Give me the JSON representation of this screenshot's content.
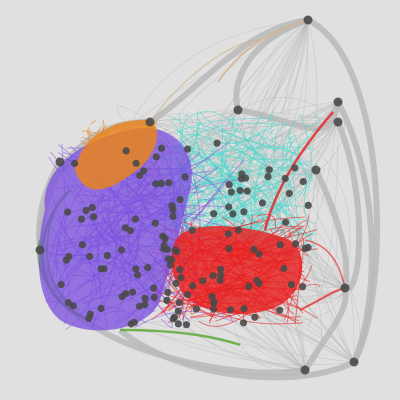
{
  "background_color": "#e0e0e0",
  "node_color": "#4a4a4a",
  "edge_colors": {
    "default": "#b8b8b8",
    "orange_cluster": "#e8841f",
    "purple_cluster": "#7b4fe0",
    "green_cluster": "#55a82a",
    "cyan_cluster": "#3fd9cc",
    "red_cluster": "#e81e1e",
    "tan_accent": "#d2b48c"
  },
  "communities": [
    {
      "name": "orange",
      "color": "#e8841f"
    },
    {
      "name": "purple",
      "color": "#7b4fe0"
    },
    {
      "name": "green",
      "color": "#55a82a"
    },
    {
      "name": "cyan",
      "color": "#3fd9cc"
    },
    {
      "name": "red",
      "color": "#e81e1e"
    }
  ]
}
